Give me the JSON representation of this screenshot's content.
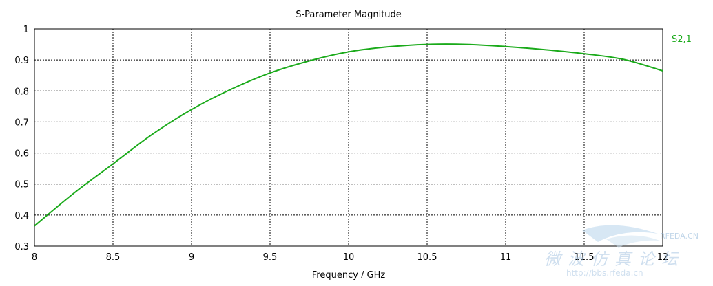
{
  "chart_data": {
    "type": "line",
    "title": "S-Parameter Magnitude",
    "xlabel": "Frequency / GHz",
    "ylabel": "",
    "xlim": [
      8,
      12
    ],
    "ylim": [
      0.3,
      1.0
    ],
    "x_ticks": [
      "8",
      "8.5",
      "9",
      "9.5",
      "10",
      "10.5",
      "11",
      "11.5",
      "12"
    ],
    "y_ticks": [
      "0.3",
      "0.4",
      "0.5",
      "0.6",
      "0.7",
      "0.8",
      "0.9",
      "1"
    ],
    "grid": true,
    "legend_position": "right",
    "series": [
      {
        "name": "S2,1",
        "color": "#1aaa1a",
        "x": [
          8.0,
          8.25,
          8.5,
          8.75,
          9.0,
          9.25,
          9.5,
          9.75,
          10.0,
          10.25,
          10.5,
          10.75,
          11.0,
          11.25,
          11.5,
          11.75,
          12.0
        ],
        "y": [
          0.365,
          0.47,
          0.565,
          0.66,
          0.74,
          0.805,
          0.858,
          0.897,
          0.926,
          0.942,
          0.95,
          0.95,
          0.943,
          0.933,
          0.92,
          0.902,
          0.865
        ]
      }
    ]
  },
  "colors": {
    "grid": "#000000",
    "axis": "#000000",
    "background": "#ffffff"
  },
  "watermark": {
    "line1": "微波仿真论坛",
    "line2": "http://bbs.rfeda.cn",
    "badge": "RFEDA.CN"
  }
}
